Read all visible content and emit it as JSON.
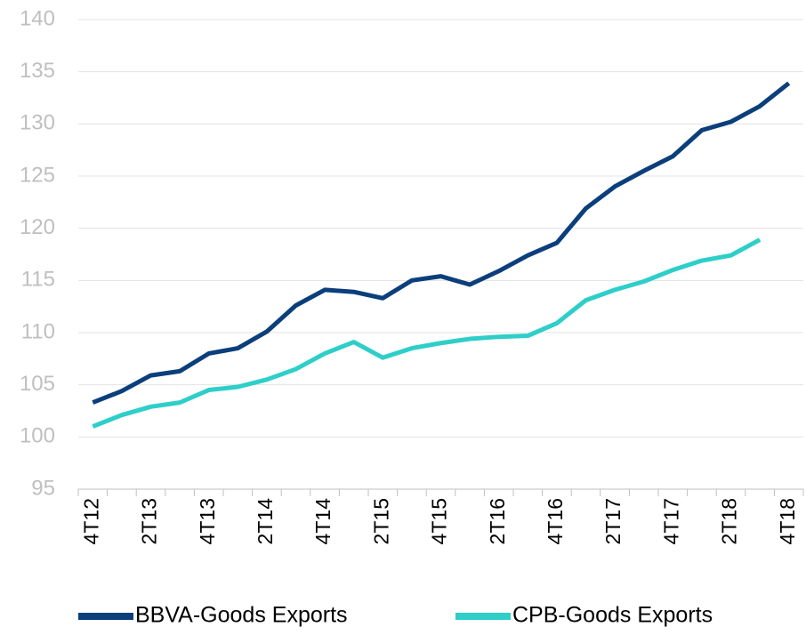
{
  "chart_data": {
    "type": "line",
    "categories": [
      "4T12",
      null,
      "2T13",
      null,
      "4T13",
      null,
      "2T14",
      null,
      "4T14",
      null,
      "2T15",
      null,
      "4T15",
      null,
      "2T16",
      null,
      "4T16",
      null,
      "2T17",
      null,
      "4T17",
      null,
      "2T18",
      null,
      "4T18"
    ],
    "series": [
      {
        "name": "BBVA-Goods Exports",
        "color": "#0b3f7c",
        "values": [
          103.3,
          104.4,
          105.9,
          106.3,
          108.0,
          108.5,
          110.1,
          112.6,
          114.1,
          113.9,
          113.3,
          115.0,
          115.4,
          114.6,
          115.9,
          117.4,
          118.6,
          121.9,
          124.0,
          125.5,
          126.9,
          129.4,
          130.2,
          131.7,
          133.9
        ]
      },
      {
        "name": "CPB-Goods Exports",
        "color": "#2ecec9",
        "values": [
          101.0,
          102.1,
          102.9,
          103.3,
          104.5,
          104.8,
          105.5,
          106.5,
          108.0,
          109.1,
          107.6,
          108.5,
          109.0,
          109.4,
          109.6,
          109.7,
          110.9,
          113.1,
          114.1,
          114.9,
          116.0,
          116.9,
          117.4,
          118.9,
          null
        ]
      }
    ],
    "ylim": [
      95,
      140
    ],
    "yticks": [
      95,
      100,
      105,
      110,
      115,
      120,
      125,
      130,
      135,
      140
    ],
    "grid": true,
    "legend": "bottom"
  }
}
